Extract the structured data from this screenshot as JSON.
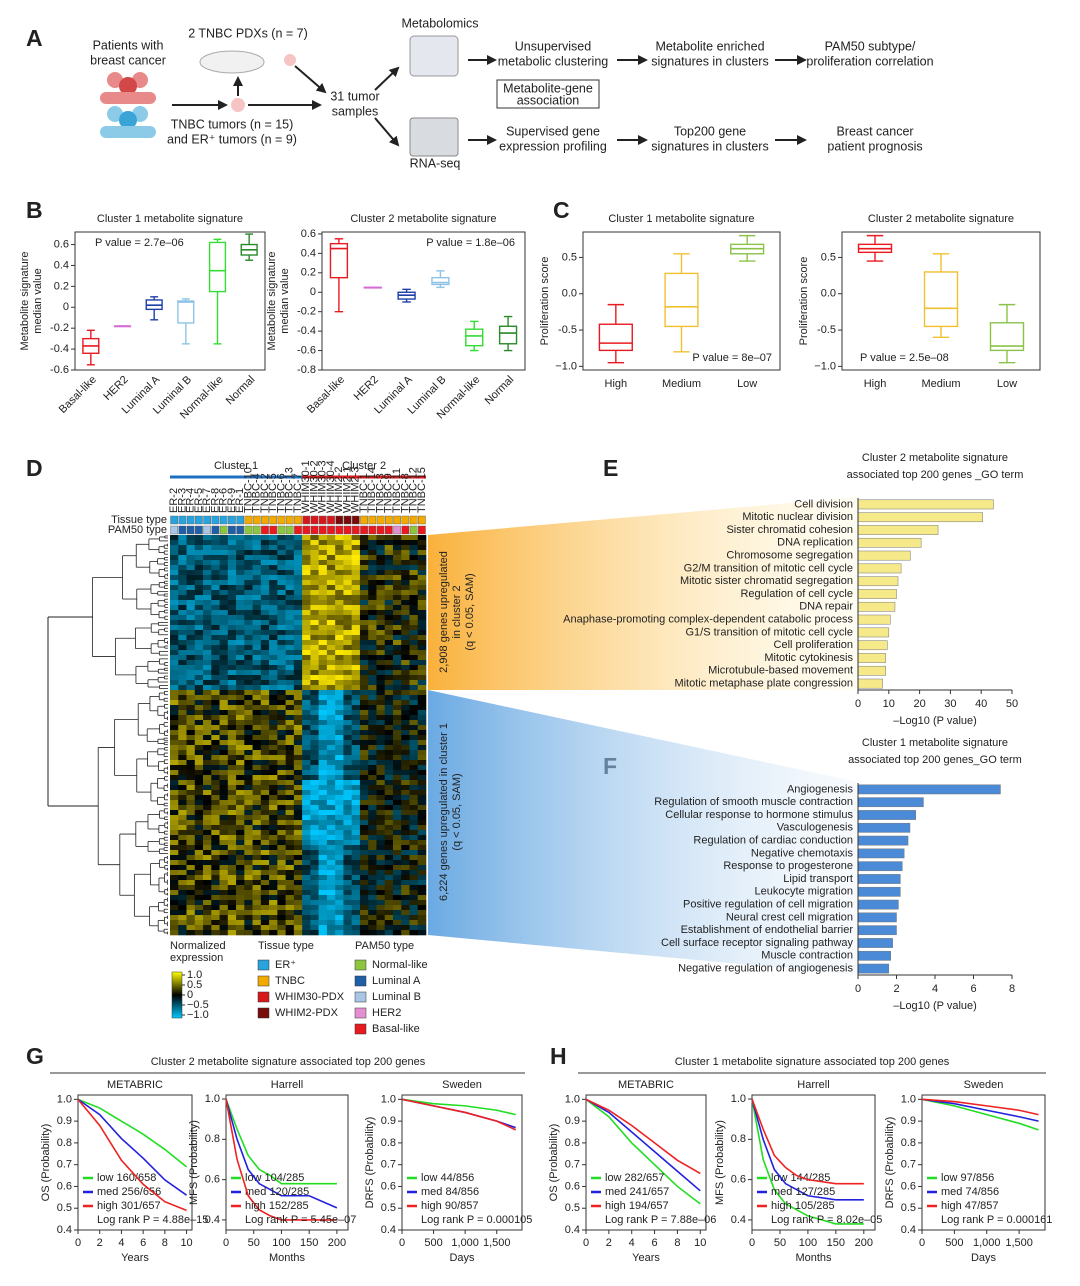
{
  "panel_labels": [
    "A",
    "B",
    "C",
    "D",
    "E",
    "F",
    "G",
    "H"
  ],
  "group_titles": {
    "G": "Cluster 2 metabolite signature associated top 200 genes",
    "H": "Cluster 1 metabolite signature associated top 200 genes"
  },
  "diagram": {
    "patients": [
      "Patients with",
      "breast cancer"
    ],
    "pdx": "2 TNBC PDXs (n = 7)",
    "tumors": [
      "TNBC tumors (n = 15)",
      "and ER⁺ tumors (n = 9)"
    ],
    "samples": [
      "31 tumor",
      "samples"
    ],
    "metabolomics": "Metabolomics",
    "rnaseq": "RNA-seq",
    "unsupervised": [
      "Unsupervised",
      "metabolic clustering"
    ],
    "association": [
      "Metabolite-gene",
      "association"
    ],
    "supervised": [
      "Supervised gene",
      "expression profiling"
    ],
    "enriched": [
      "Metabolite enriched",
      "signatures in clusters"
    ],
    "top200": [
      "Top200 gene",
      "signatures in clusters"
    ],
    "pam50": [
      "PAM50 subtype/",
      "proliferation correlation"
    ],
    "prognosis": [
      "Breast cancer",
      "patient prognosis"
    ]
  },
  "heatmap": {
    "cluster_labels": [
      "Cluster 1",
      "Cluster 2"
    ],
    "row_labels": [
      "Tissue type",
      "PAM50 type"
    ],
    "columns": [
      "ER-2",
      "ER-3",
      "ER-4",
      "ER-5",
      "ER-7",
      "ER-8",
      "ER-6",
      "ER-9",
      "ER-1",
      "TNBC-10",
      "TNBC-4",
      "TNBC-2",
      "TNBC-5",
      "TNBC-6",
      "TNBC-13",
      "TNBC-7",
      "WHIM30-1",
      "WHIM30-2",
      "WHIM30-3",
      "WHIM30-4",
      "WHIM2-2",
      "WHIM2-1",
      "WHIM2-3",
      "TNBC-1",
      "TNBC-14",
      "TNBC-3",
      "TNBC-9",
      "TNBC-11",
      "TNBC-8",
      "TNBC-12",
      "TNBC-15"
    ],
    "annotations": [
      [
        "2,908 genes upregulated",
        "in cluster 2",
        "(q < 0.05, SAM)"
      ],
      [
        "6,224 genes upregulated in cluster 1",
        "(q < 0.05, SAM)"
      ]
    ],
    "colorbar": {
      "title": [
        "Normalized",
        "expression"
      ],
      "ticks": [
        {
          "value": 1,
          "label": "1.0"
        },
        0.5,
        0,
        {
          "value": -0.5,
          "label": "−0.5"
        },
        {
          "value": -1,
          "label": "−1.0"
        }
      ]
    },
    "legends": [
      {
        "title": "Tissue type",
        "items": [
          {
            "name": "ER⁺",
            "color": "#29a3dd"
          },
          {
            "name": "TNBC",
            "color": "#f2a900"
          },
          {
            "name": "WHIM30-PDX",
            "color": "#d7191c"
          },
          {
            "name": "WHIM2-PDX",
            "color": "#7a0b0b"
          }
        ]
      },
      {
        "title": "PAM50 type",
        "items": [
          {
            "name": "Normal-like",
            "color": "#8cc63f"
          },
          {
            "name": "Luminal A",
            "color": "#1f5fa8"
          },
          {
            "name": "Luminal B",
            "color": "#a8c6e6"
          },
          {
            "name": "HER2",
            "color": "#e58fd3"
          },
          {
            "name": "Basal-like",
            "color": "#e8191f"
          }
        ]
      }
    ]
  },
  "chart_data": [
    {
      "type": "box",
      "title": "Cluster 1 metabolite signature",
      "ylabel": [
        "Metabolite signature",
        "median value"
      ],
      "annotation": "P value = 2.7e–06",
      "categories": [
        "Basal-like",
        "HER2",
        "Luminal A",
        "Luminal B",
        "Normal-like",
        "Normal"
      ],
      "colors": [
        "#e8191f",
        "#d66ad6",
        "#1f3fa8",
        "#8fc3e6",
        "#33dd33",
        "#2a8a2a"
      ],
      "values": [
        [
          -0.55,
          -0.44,
          -0.37,
          -0.3,
          -0.22
        ],
        [
          -0.18,
          -0.18,
          -0.18,
          -0.18,
          -0.18
        ],
        [
          -0.12,
          -0.02,
          0.02,
          0.07,
          0.1
        ],
        [
          -0.35,
          -0.15,
          0.05,
          0.06,
          0.08
        ],
        [
          -0.35,
          0.15,
          0.35,
          0.62,
          0.65
        ],
        [
          0.45,
          0.5,
          0.55,
          0.6,
          0.7
        ]
      ],
      "ylim": [
        -0.6,
        0.72
      ],
      "yticks": [
        -0.6,
        -0.4,
        -0.2,
        0,
        0.2,
        0.4,
        0.6
      ]
    },
    {
      "type": "box",
      "title": "Cluster 2 metabolite signature",
      "ylabel": [
        "Metabolite signature",
        "median value"
      ],
      "annotation": "P value = 1.8e–06",
      "categories": [
        "Basal-like",
        "HER2",
        "Luminal A",
        "Luminal B",
        "Normal-like",
        "Normal"
      ],
      "colors": [
        "#e8191f",
        "#d66ad6",
        "#1f3fa8",
        "#8fc3e6",
        "#33dd33",
        "#2a8a2a"
      ],
      "values": [
        [
          -0.2,
          0.15,
          0.45,
          0.5,
          0.55
        ],
        [
          0.05,
          0.05,
          0.05,
          0.05,
          0.05
        ],
        [
          -0.1,
          -0.07,
          -0.03,
          0,
          0.03
        ],
        [
          0.05,
          0.08,
          0.1,
          0.15,
          0.22
        ],
        [
          -0.6,
          -0.55,
          -0.45,
          -0.38,
          -0.3
        ],
        [
          -0.6,
          -0.53,
          -0.42,
          -0.35,
          -0.25
        ]
      ],
      "ylim": [
        -0.8,
        0.62
      ],
      "yticks": [
        -0.8,
        -0.6,
        -0.4,
        -0.2,
        0,
        0.2,
        0.4,
        0.6
      ]
    },
    {
      "type": "box",
      "title": "Cluster 1 metabolite signature",
      "ylabel": [
        "Proliferation score"
      ],
      "annotation": "P value = 8e–07",
      "categories": [
        "High",
        "Medium",
        "Low"
      ],
      "colors": [
        "#e8191f",
        "#f0c030",
        "#8bc34a"
      ],
      "values": [
        [
          -0.95,
          -0.78,
          -0.68,
          -0.42,
          -0.15
        ],
        [
          -0.8,
          -0.45,
          -0.18,
          0.28,
          0.55
        ],
        [
          0.45,
          0.55,
          0.62,
          0.68,
          0.8
        ]
      ],
      "ylim": [
        -1.05,
        0.85
      ],
      "yticks": [
        {
          "value": -1,
          "label": "−1.0"
        },
        -0.5,
        {
          "value": 0,
          "label": "0.0"
        },
        0.5
      ]
    },
    {
      "type": "box",
      "title": "Cluster 2 metabolite signature",
      "ylabel": [
        "Proliferation score"
      ],
      "annotation": "P value = 2.5e–08",
      "categories": [
        "High",
        "Medium",
        "Low"
      ],
      "colors": [
        "#e8191f",
        "#f0c030",
        "#8bc34a"
      ],
      "values": [
        [
          0.45,
          0.57,
          0.62,
          0.68,
          0.8
        ],
        [
          -0.6,
          -0.45,
          -0.2,
          0.3,
          0.55
        ],
        [
          -0.95,
          -0.78,
          -0.72,
          -0.4,
          -0.15
        ]
      ],
      "ylim": [
        -1.05,
        0.85
      ],
      "yticks": [
        {
          "value": -1,
          "label": "−1.0"
        },
        -0.5,
        {
          "value": 0,
          "label": "0.0"
        },
        0.5
      ]
    },
    {
      "type": "bar",
      "orientation": "horizontal",
      "title": [
        "Cluster 2 metabolite signature",
        "associated top 200 genes _GO term"
      ],
      "xlabel": "–Log10 (P value)",
      "color": "#f5e98a",
      "categories": [
        "Cell division",
        "Mitotic nuclear division",
        "Sister chromatid cohesion",
        "DNA replication",
        "Chromosome segregation",
        "G2/M transition of mitotic cell cycle",
        "Mitotic sister chromatid segregation",
        "Regulation of cell cycle",
        "DNA repair",
        "Anaphase-promoting complex-dependent catabolic process",
        "G1/S transition of mitotic cell cycle",
        "Cell proliferation",
        "Mitotic cytokinesis",
        "Microtubule-based movement",
        "Mitotic metaphase plate congression"
      ],
      "values": [
        44,
        40.5,
        26,
        20.5,
        17,
        14,
        13,
        12.5,
        12,
        10.5,
        10,
        9.5,
        9,
        9,
        8
      ],
      "xlim": [
        0,
        50
      ],
      "xticks": [
        0,
        10,
        20,
        30,
        40,
        50
      ]
    },
    {
      "type": "bar",
      "orientation": "horizontal",
      "title": [
        "Cluster 1 metabolite signature",
        "associated top 200 genes_GO term"
      ],
      "xlabel": "–Log10 (P value)",
      "color": "#4a8ad6",
      "categories": [
        "Angiogenesis",
        "Regulation of smooth muscle contraction",
        "Cellular response to hormone stimulus",
        "Vasculogenesis",
        "Regulation of cardiac conduction",
        "Negative chemotaxis",
        "Response to progesterone",
        "Lipid transport",
        "Leukocyte migration",
        "Positive regulation of cell migration",
        "Neural crest cell migration",
        "Establishment of endothelial barrier",
        "Cell surface receptor signaling pathway",
        "Muscle contraction",
        "Negative regulation of angiogenesis"
      ],
      "values": [
        7.4,
        3.4,
        3.0,
        2.7,
        2.6,
        2.4,
        2.3,
        2.2,
        2.2,
        2.1,
        2.0,
        2.0,
        1.8,
        1.7,
        1.6
      ],
      "xlim": [
        0,
        8
      ],
      "xticks": [
        0,
        2,
        4,
        6,
        8
      ]
    },
    {
      "type": "line",
      "title": "METABRIC",
      "xlabel": "Years",
      "ylabel": "OS (Probability)",
      "annotation": "Log rank P = 4.88e–15",
      "x": [
        0,
        2,
        4,
        6,
        8,
        10
      ],
      "series": [
        {
          "name": "low 160/658",
          "color": "#22dd22",
          "values": [
            1,
            0.96,
            0.9,
            0.84,
            0.77,
            0.69
          ]
        },
        {
          "name": "med 256/656",
          "color": "#2222dd",
          "values": [
            1,
            0.93,
            0.82,
            0.73,
            0.63,
            0.56
          ]
        },
        {
          "name": "high 301/657",
          "color": "#ee2222",
          "values": [
            1,
            0.88,
            0.72,
            0.61,
            0.53,
            0.49
          ]
        }
      ],
      "xlim": [
        0,
        10.5
      ],
      "ylim": [
        0.4,
        1.02
      ],
      "xticks": [
        0,
        2,
        4,
        6,
        8,
        10
      ],
      "yticks": [
        0.4,
        0.5,
        0.6,
        0.7,
        0.8,
        0.9,
        {
          "value": 1,
          "label": "1.0"
        }
      ]
    },
    {
      "type": "line",
      "title": "Harrell",
      "xlabel": "Months",
      "ylabel": "MFS (Probability)",
      "annotation": "Log rank P = 5.45e–07",
      "x": [
        0,
        20,
        40,
        60,
        80,
        100,
        150,
        200
      ],
      "series": [
        {
          "name": "low 104/285",
          "color": "#22dd22",
          "values": [
            1,
            0.85,
            0.72,
            0.65,
            0.62,
            0.58,
            0.58,
            0.58
          ]
        },
        {
          "name": "med 120/285",
          "color": "#2222dd",
          "values": [
            1,
            0.8,
            0.65,
            0.58,
            0.55,
            0.52,
            0.52,
            0.46
          ]
        },
        {
          "name": "high 152/285",
          "color": "#ee2222",
          "values": [
            1,
            0.7,
            0.52,
            0.45,
            0.42,
            0.4,
            0.4,
            0.4
          ]
        }
      ],
      "xlim": [
        0,
        220
      ],
      "ylim": [
        0.35,
        1.02
      ],
      "xticks": [
        0,
        50,
        100,
        150,
        200
      ],
      "yticks": [
        0.4,
        0.6,
        0.8,
        {
          "value": 1,
          "label": "1.0"
        }
      ]
    },
    {
      "type": "line",
      "title": "Sweden",
      "xlabel": "Days",
      "ylabel": "DRFS (Probability)",
      "annotation": "Log rank P = 0.000105",
      "x": [
        0,
        500,
        1000,
        1500,
        1800
      ],
      "series": [
        {
          "name": "low 44/856",
          "color": "#22dd22",
          "values": [
            1,
            0.98,
            0.97,
            0.95,
            0.93
          ]
        },
        {
          "name": "med 84/856",
          "color": "#2222dd",
          "values": [
            1,
            0.97,
            0.94,
            0.9,
            0.87
          ]
        },
        {
          "name": "high 90/857",
          "color": "#ee2222",
          "values": [
            1,
            0.97,
            0.94,
            0.9,
            0.86
          ]
        }
      ],
      "xlim": [
        0,
        1900
      ],
      "ylim": [
        0.4,
        1.02
      ],
      "xticks": [
        0,
        500,
        {
          "value": 1000,
          "label": "1,000"
        },
        {
          "value": 1500,
          "label": "1,500"
        }
      ],
      "yticks": [
        0.4,
        0.5,
        0.6,
        0.7,
        0.8,
        0.9,
        {
          "value": 1,
          "label": "1.0"
        }
      ]
    },
    {
      "type": "line",
      "title": "METABRIC",
      "xlabel": "Years",
      "ylabel": "OS (Probability)",
      "annotation": "Log rank P = 7.88e–06",
      "x": [
        0,
        2,
        4,
        6,
        8,
        10
      ],
      "series": [
        {
          "name": "low 282/657",
          "color": "#22dd22",
          "values": [
            1,
            0.92,
            0.8,
            0.7,
            0.6,
            0.52
          ]
        },
        {
          "name": "med 241/657",
          "color": "#2222dd",
          "values": [
            1,
            0.94,
            0.85,
            0.76,
            0.67,
            0.58
          ]
        },
        {
          "name": "high 194/657",
          "color": "#ee2222",
          "values": [
            1,
            0.95,
            0.88,
            0.8,
            0.72,
            0.66
          ]
        }
      ],
      "xlim": [
        0,
        10.5
      ],
      "ylim": [
        0.4,
        1.02
      ],
      "xticks": [
        0,
        2,
        4,
        6,
        8,
        10
      ],
      "yticks": [
        0.4,
        0.5,
        0.6,
        0.7,
        0.8,
        0.9,
        {
          "value": 1,
          "label": "1.0"
        }
      ]
    },
    {
      "type": "line",
      "title": "Harrell",
      "xlabel": "Months",
      "ylabel": "MFS (Probability)",
      "annotation": "Log rank P = 8.02e–05",
      "x": [
        0,
        20,
        40,
        60,
        80,
        100,
        150,
        200
      ],
      "series": [
        {
          "name": "low 144/285",
          "color": "#22dd22",
          "values": [
            1,
            0.7,
            0.55,
            0.48,
            0.45,
            0.42,
            0.38,
            0.38
          ]
        },
        {
          "name": "med 127/285",
          "color": "#2222dd",
          "values": [
            1,
            0.8,
            0.65,
            0.58,
            0.55,
            0.52,
            0.5,
            0.5
          ]
        },
        {
          "name": "high 105/285",
          "color": "#ee2222",
          "values": [
            1,
            0.85,
            0.72,
            0.66,
            0.62,
            0.6,
            0.58,
            0.58
          ]
        }
      ],
      "xlim": [
        0,
        220
      ],
      "ylim": [
        0.35,
        1.02
      ],
      "xticks": [
        0,
        50,
        100,
        150,
        200
      ],
      "yticks": [
        0.4,
        0.6,
        0.8,
        {
          "value": 1,
          "label": "1.0"
        }
      ]
    },
    {
      "type": "line",
      "title": "Sweden",
      "xlabel": "Days",
      "ylabel": "DRFS (Probability)",
      "annotation": "Log rank P = 0.000161",
      "x": [
        0,
        500,
        1000,
        1500,
        1800
      ],
      "series": [
        {
          "name": "low 97/856",
          "color": "#22dd22",
          "values": [
            1,
            0.97,
            0.93,
            0.89,
            0.86
          ]
        },
        {
          "name": "med 74/856",
          "color": "#2222dd",
          "values": [
            1,
            0.98,
            0.95,
            0.92,
            0.9
          ]
        },
        {
          "name": "high 47/857",
          "color": "#ee2222",
          "values": [
            1,
            0.99,
            0.97,
            0.95,
            0.93
          ]
        }
      ],
      "xlim": [
        0,
        1900
      ],
      "ylim": [
        0.4,
        1.02
      ],
      "xticks": [
        0,
        500,
        {
          "value": 1000,
          "label": "1,000"
        },
        {
          "value": 1500,
          "label": "1,500"
        }
      ],
      "yticks": [
        0.4,
        0.5,
        0.6,
        0.7,
        0.8,
        0.9,
        {
          "value": 1,
          "label": "1.0"
        }
      ]
    }
  ]
}
